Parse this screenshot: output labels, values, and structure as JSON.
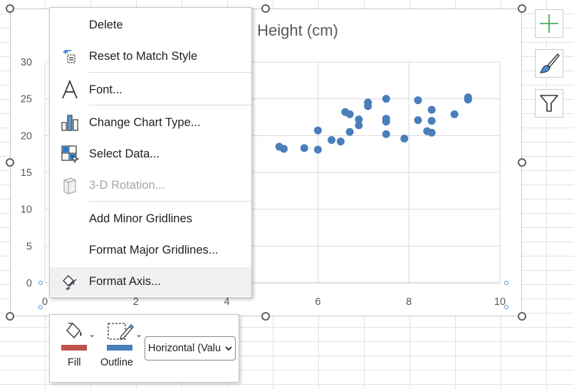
{
  "chart": {
    "title": "Height (cm)",
    "y_axis_ticks": [
      "30",
      "25",
      "20",
      "15",
      "10",
      "5",
      "0"
    ],
    "x_axis_ticks": [
      "0",
      "2",
      "4",
      "6",
      "8",
      "10"
    ]
  },
  "chart_data": {
    "type": "scatter",
    "title": "Height (cm)",
    "xlim": [
      0,
      10
    ],
    "ylim": [
      0,
      30
    ],
    "grid": true,
    "points": [
      [
        5.15,
        18.5
      ],
      [
        5.25,
        18.2
      ],
      [
        5.7,
        18.3
      ],
      [
        6.0,
        20.7
      ],
      [
        6.0,
        18.1
      ],
      [
        6.3,
        19.4
      ],
      [
        6.5,
        19.2
      ],
      [
        6.6,
        23.2
      ],
      [
        6.7,
        22.9
      ],
      [
        6.7,
        20.5
      ],
      [
        6.9,
        22.2
      ],
      [
        6.9,
        21.4
      ],
      [
        7.1,
        24.5
      ],
      [
        7.1,
        24.0
      ],
      [
        7.5,
        25.0
      ],
      [
        7.5,
        22.3
      ],
      [
        7.5,
        21.9
      ],
      [
        7.5,
        20.2
      ],
      [
        7.9,
        19.6
      ],
      [
        8.2,
        24.8
      ],
      [
        8.2,
        22.1
      ],
      [
        8.4,
        20.6
      ],
      [
        8.5,
        23.5
      ],
      [
        8.5,
        22.0
      ],
      [
        8.5,
        20.4
      ],
      [
        9.0,
        22.9
      ],
      [
        9.3,
        25.2
      ],
      [
        9.3,
        24.9
      ]
    ],
    "color": "#4a7ebb"
  },
  "context_menu": {
    "items": [
      {
        "label": "Delete",
        "icon": "none",
        "disabled": false
      },
      {
        "label": "Reset to Match Style",
        "icon": "reset-style-icon",
        "disabled": false
      },
      {
        "label": "Font...",
        "icon": "font-icon",
        "disabled": false
      },
      {
        "label": "Change Chart Type...",
        "icon": "chart-type-icon",
        "disabled": false
      },
      {
        "label": "Select Data...",
        "icon": "select-data-icon",
        "disabled": false
      },
      {
        "label": "3-D Rotation...",
        "icon": "rotation-3d-icon",
        "disabled": true
      },
      {
        "label": "Add Minor Gridlines",
        "icon": "none",
        "disabled": false
      },
      {
        "label": "Format Major Gridlines...",
        "icon": "none",
        "disabled": false
      },
      {
        "label": "Format Axis...",
        "icon": "format-axis-icon",
        "disabled": false
      }
    ]
  },
  "mini_toolbar": {
    "fill_label": "Fill",
    "outline_label": "Outline",
    "element_selector_value": "Horizontal (Valu",
    "fill_color": "#c0504d",
    "outline_color": "#4a7ebb"
  },
  "side_buttons": {
    "add_color": "#2ea043",
    "style_color": "#4a90d9"
  }
}
